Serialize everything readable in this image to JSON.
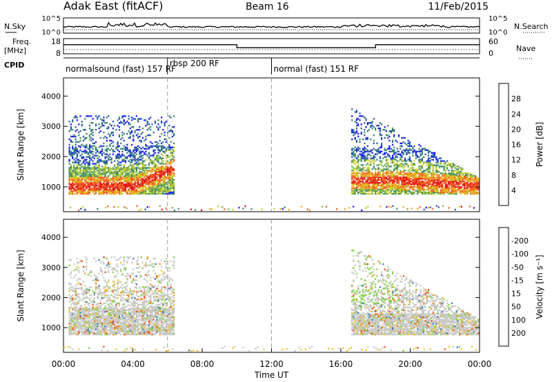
{
  "header": {
    "title": "Adak East (fitACF)",
    "beam": "Beam 16",
    "date": "11/Feb/2015"
  },
  "strips": {
    "nsky_label": "N.Sky",
    "nsky_ticks": [
      "10^5",
      "10^0"
    ],
    "nsearch_label": "N.Search",
    "nsearch_ticks": [
      "10^5",
      "10^0"
    ],
    "freq_label": "Freq.",
    "freq_unit": "[MHz]",
    "freq_ticks": [
      "18",
      "8"
    ],
    "nave_label": "Nave",
    "nave_ticks": [
      "60",
      "0"
    ],
    "cpid_label": "CPID",
    "programs": [
      {
        "name": "normalsound (fast) 157 RF",
        "start": 0,
        "end": 6
      },
      {
        "name": "rbsp 200 RF",
        "start": 6,
        "end": 12
      },
      {
        "name": "normal (fast) 151 RF",
        "start": 12,
        "end": 24
      }
    ],
    "frequency_steps": [
      {
        "start": 0,
        "end": 10,
        "value": 14
      },
      {
        "start": 10,
        "end": 18,
        "value": 12
      },
      {
        "start": 18,
        "end": 24,
        "value": 14
      }
    ]
  },
  "chart_data": [
    {
      "type": "heatmap",
      "quantity": "power",
      "ylabel": "Slant Range [km]",
      "yticks": [
        1000,
        2000,
        3000,
        4000
      ],
      "ylim": [
        180,
        4600
      ],
      "xlim": [
        0,
        24
      ],
      "colorbar": {
        "label": "Power [dB]",
        "ticks": [
          4,
          8,
          12,
          16,
          20,
          24,
          28
        ],
        "range": [
          0,
          32
        ],
        "colors": [
          "#1a1aff",
          "#2b5aa8",
          "#3a8a6a",
          "#7ab04a",
          "#c8cc20",
          "#f5a020",
          "#f06020",
          "#e01515"
        ]
      }
    },
    {
      "type": "heatmap",
      "quantity": "velocity",
      "ylabel": "Slant Range [km]",
      "yticks": [
        1000,
        2000,
        3000,
        4000
      ],
      "ylim": [
        180,
        4600
      ],
      "xlim": [
        0,
        24
      ],
      "xlabel": "Time UT",
      "xticks": [
        "00:00",
        "04:00",
        "08:00",
        "12:00",
        "16:00",
        "20:00",
        "00:00"
      ],
      "colorbar": {
        "label": "Velocity [m s⁻¹]",
        "ticks": [
          "200",
          "100",
          "50",
          "15",
          "-15",
          "-50",
          "-100",
          "-200"
        ],
        "colors": [
          "#2020c8",
          "#3a7ac0",
          "#2a9a5a",
          "#80d040",
          "#c8c8c4",
          "#f0c020",
          "#f09020",
          "#f05010",
          "#e01515"
        ]
      }
    }
  ]
}
